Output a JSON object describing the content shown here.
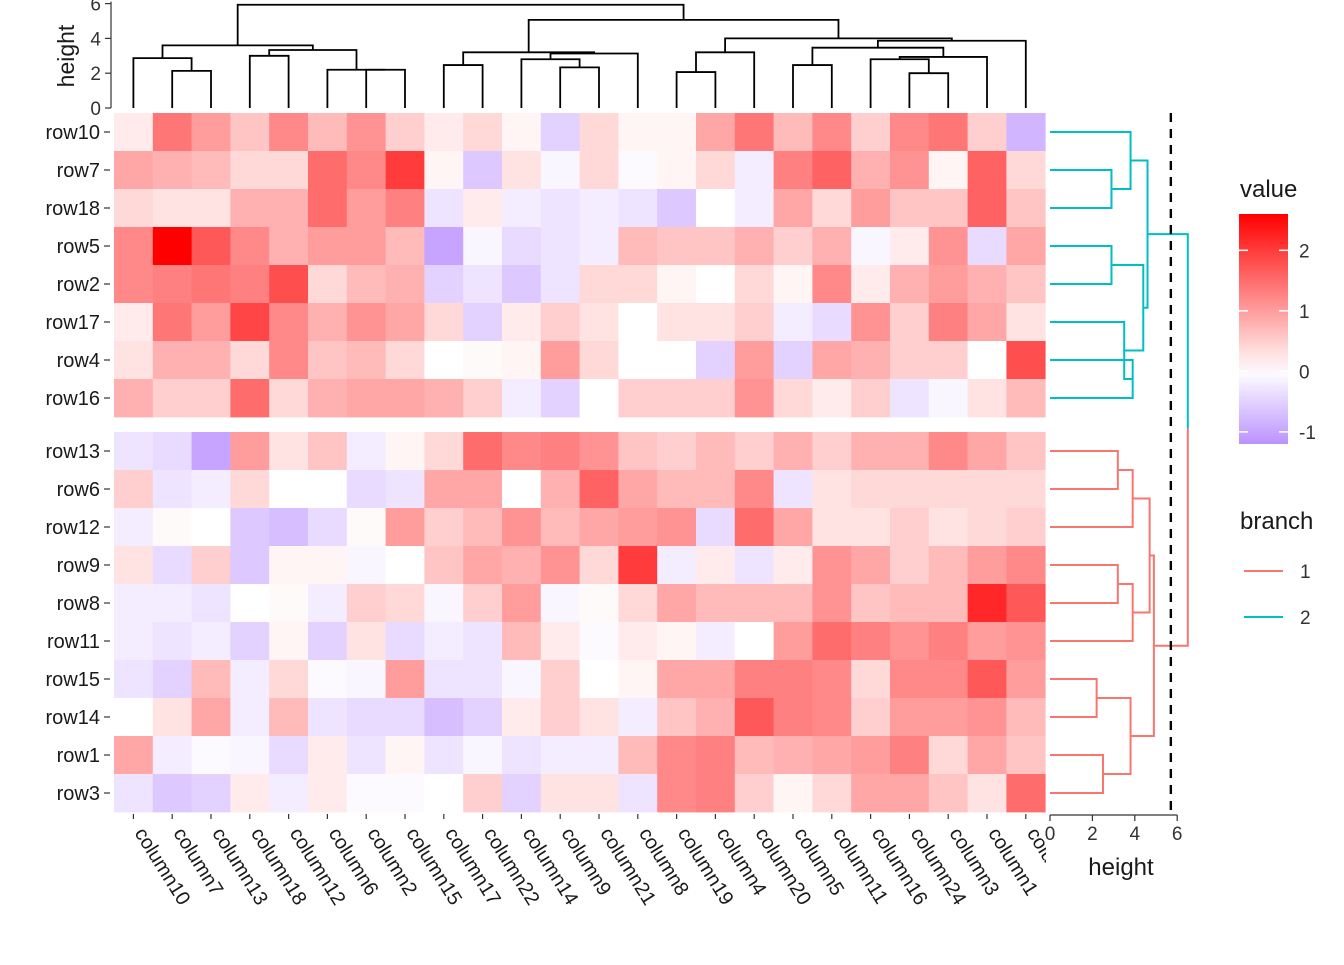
{
  "chart_data": {
    "type": "heatmap",
    "columns": [
      "column10",
      "column7",
      "column13",
      "column18",
      "column12",
      "column6",
      "column2",
      "column15",
      "column17",
      "column22",
      "column14",
      "column9",
      "column21",
      "column8",
      "column19",
      "column4",
      "column20",
      "column5",
      "column11",
      "column16",
      "column24",
      "column3",
      "column1",
      "colu..."
    ],
    "row_groups": [
      {
        "branch": "2",
        "rows": [
          "row10",
          "row7",
          "row18",
          "row5",
          "row2",
          "row17",
          "row4",
          "row16"
        ]
      },
      {
        "branch": "1",
        "rows": [
          "row13",
          "row6",
          "row12",
          "row9",
          "row8",
          "row11",
          "row15",
          "row14",
          "row1",
          "row3"
        ]
      }
    ],
    "values": [
      [
        0.2,
        1.4,
        1.0,
        0.6,
        1.2,
        0.7,
        1.1,
        0.5,
        0.2,
        0.4,
        0.1,
        -0.5,
        0.4,
        0.1,
        0.1,
        0.9,
        1.4,
        0.7,
        1.2,
        0.5,
        1.2,
        1.4,
        0.5,
        -0.8
      ],
      [
        0.9,
        0.8,
        0.7,
        0.4,
        0.4,
        1.5,
        1.2,
        2.0,
        0.1,
        -0.6,
        0.3,
        -0.1,
        0.4,
        -0.05,
        0.1,
        0.4,
        -0.2,
        1.3,
        1.6,
        0.8,
        1.1,
        0.1,
        1.6,
        0.4
      ],
      [
        0.4,
        0.3,
        0.3,
        0.8,
        0.8,
        1.5,
        1.0,
        1.3,
        -0.3,
        0.2,
        -0.2,
        -0.3,
        -0.2,
        -0.3,
        -0.6,
        0.0,
        -0.2,
        0.9,
        0.4,
        1.0,
        0.6,
        0.6,
        1.6,
        0.6
      ],
      [
        1.2,
        2.6,
        1.7,
        1.2,
        0.8,
        1.0,
        1.0,
        0.7,
        -1.0,
        -0.1,
        -0.4,
        -0.3,
        -0.2,
        0.7,
        0.6,
        0.6,
        0.8,
        0.5,
        0.8,
        -0.1,
        0.2,
        1.1,
        -0.4,
        0.9
      ],
      [
        1.2,
        1.3,
        1.4,
        1.3,
        1.8,
        0.4,
        0.7,
        0.8,
        -0.5,
        -0.3,
        -0.6,
        -0.3,
        0.4,
        0.4,
        0.1,
        0.0,
        0.4,
        0.1,
        1.2,
        0.2,
        0.8,
        1.0,
        0.8,
        0.6
      ],
      [
        0.2,
        1.4,
        1.0,
        1.9,
        1.2,
        0.8,
        1.1,
        0.9,
        0.4,
        -0.5,
        0.2,
        0.5,
        0.3,
        0.0,
        0.3,
        0.3,
        0.5,
        -0.2,
        -0.4,
        1.1,
        0.5,
        1.3,
        0.9,
        0.3
      ],
      [
        0.3,
        0.8,
        0.8,
        0.4,
        1.2,
        0.6,
        0.7,
        0.4,
        0.0,
        0.05,
        0.1,
        1.0,
        0.4,
        0.0,
        0.0,
        -0.5,
        1.0,
        -0.5,
        0.9,
        0.8,
        0.5,
        0.5,
        0.0,
        1.8
      ],
      [
        0.8,
        0.5,
        0.5,
        1.5,
        0.4,
        0.8,
        0.9,
        0.9,
        0.8,
        0.5,
        -0.2,
        -0.5,
        0.0,
        0.5,
        0.5,
        0.5,
        1.1,
        0.4,
        0.2,
        0.5,
        -0.3,
        -0.1,
        0.3,
        0.7
      ],
      [
        -0.3,
        -0.4,
        -1.0,
        1.0,
        0.3,
        0.6,
        -0.2,
        0.1,
        0.4,
        1.5,
        1.2,
        1.3,
        1.1,
        0.6,
        0.5,
        0.7,
        0.5,
        0.8,
        0.5,
        0.8,
        0.8,
        1.2,
        0.9,
        0.6
      ],
      [
        0.5,
        -0.3,
        -0.2,
        0.4,
        0.0,
        0.0,
        -0.4,
        -0.3,
        0.9,
        0.9,
        0.0,
        0.8,
        1.6,
        0.9,
        0.7,
        0.7,
        1.2,
        -0.3,
        0.3,
        0.4,
        0.4,
        0.4,
        0.4,
        0.4
      ],
      [
        -0.2,
        0.05,
        0.0,
        -0.6,
        -0.7,
        -0.4,
        0.05,
        1.0,
        0.5,
        0.7,
        1.1,
        0.7,
        0.9,
        1.0,
        1.1,
        -0.4,
        1.5,
        0.9,
        0.3,
        0.3,
        0.5,
        0.3,
        0.4,
        0.5
      ],
      [
        0.3,
        -0.4,
        0.5,
        -0.6,
        0.1,
        0.1,
        -0.1,
        0.0,
        0.6,
        0.9,
        0.8,
        1.1,
        0.4,
        2.0,
        -0.2,
        0.2,
        -0.3,
        0.2,
        1.1,
        0.9,
        0.5,
        0.7,
        1.0,
        1.2
      ],
      [
        -0.2,
        -0.2,
        -0.3,
        0.0,
        0.05,
        -0.2,
        0.5,
        0.4,
        -0.1,
        0.5,
        1.0,
        -0.1,
        0.05,
        0.4,
        0.9,
        0.7,
        0.7,
        0.7,
        1.1,
        0.6,
        0.7,
        0.7,
        2.2,
        1.7
      ],
      [
        -0.2,
        -0.3,
        -0.2,
        -0.5,
        0.1,
        -0.5,
        0.3,
        -0.4,
        -0.2,
        -0.3,
        0.7,
        0.2,
        -0.05,
        0.2,
        0.1,
        -0.2,
        0.0,
        1.0,
        1.5,
        1.3,
        1.1,
        1.3,
        1.0,
        1.1
      ],
      [
        -0.3,
        -0.5,
        0.7,
        -0.2,
        0.4,
        -0.05,
        -0.1,
        1.0,
        -0.3,
        -0.3,
        -0.1,
        0.5,
        0.0,
        0.1,
        0.9,
        0.9,
        1.3,
        1.3,
        1.2,
        0.4,
        1.2,
        1.2,
        1.7,
        1.0
      ],
      [
        0.0,
        0.3,
        0.9,
        -0.2,
        0.7,
        -0.3,
        -0.4,
        -0.4,
        -0.7,
        -0.5,
        0.2,
        0.5,
        0.3,
        -0.2,
        0.6,
        0.8,
        1.7,
        1.3,
        1.2,
        0.5,
        1.0,
        1.0,
        1.1,
        0.7
      ],
      [
        0.9,
        -0.2,
        -0.05,
        -0.1,
        -0.4,
        0.2,
        -0.3,
        0.1,
        -0.3,
        -0.1,
        -0.3,
        -0.2,
        -0.2,
        0.7,
        1.2,
        1.3,
        0.7,
        0.8,
        0.9,
        1.0,
        1.3,
        0.4,
        0.9,
        0.6
      ],
      [
        -0.3,
        -0.6,
        -0.5,
        0.2,
        -0.2,
        0.2,
        -0.05,
        -0.05,
        0.0,
        0.5,
        -0.5,
        0.3,
        0.3,
        -0.3,
        1.2,
        1.3,
        0.5,
        0.1,
        0.4,
        0.9,
        0.9,
        0.6,
        0.3,
        1.5
      ]
    ],
    "color_scale": {
      "min": -1.3,
      "mid": 0,
      "max": 2.6,
      "low_color": "#B589FF",
      "mid_color": "#FFFFFF",
      "high_color": "#FF0000"
    },
    "legend": {
      "title": "value",
      "ticks": [
        "2",
        "1",
        "0",
        "-1"
      ]
    },
    "branch_legend": {
      "title": "branch",
      "items": [
        {
          "label": "1",
          "color": "#F8766D"
        },
        {
          "label": "2",
          "color": "#00BFC4"
        }
      ]
    },
    "top_axis": {
      "label": "height",
      "ticks": [
        "0",
        "2",
        "4",
        "6"
      ],
      "range": [
        0,
        6
      ]
    },
    "right_axis": {
      "label": "height",
      "ticks": [
        "0",
        "2",
        "4",
        "6"
      ],
      "range": [
        0,
        6
      ]
    },
    "cut_height": 5.7,
    "column_dendrogram": {
      "root_height": 5.9
    },
    "row_dendrogram": {
      "root_height": 6.3
    }
  }
}
